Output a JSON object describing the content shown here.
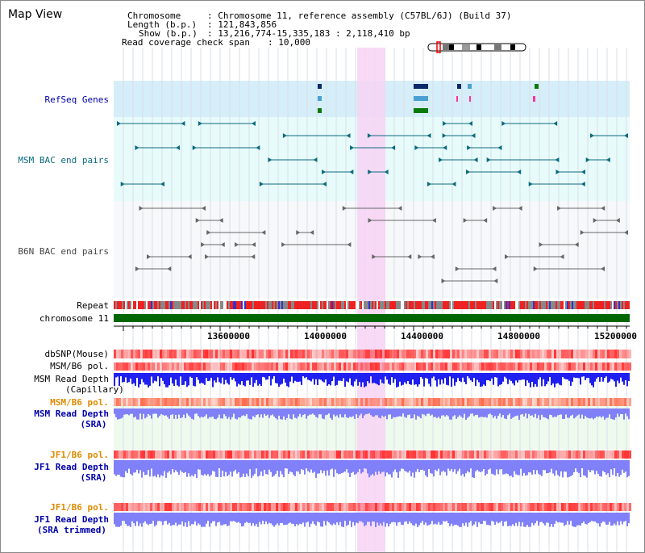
{
  "header": {
    "title": "Map View",
    "chromosome_key": "Chromosome",
    "chromosome_value": ": Chromosome 11, reference assembly (C57BL/6J) (Build 37)",
    "length_key": "Length (b.p.)",
    "length_value": ": 121,843,856",
    "show_key": "Show (b.p.)",
    "show_value": ": 13,216,774-15,335,183 : 2,118,410 bp",
    "coverage_key": "Read coverage check span",
    "coverage_value": ": 10,000"
  },
  "tracks": {
    "refseq": "RefSeq Genes",
    "msm_bac": "MSM BAC end pairs",
    "b6n_bac": "B6N BAC end pairs",
    "repeat": "Repeat",
    "chrom": "chromosome 11",
    "dbsnp": "dbSNP(Mouse)",
    "msm_pol": "MSM/B6 pol.",
    "msm_depth_cap_1": "MSM Read Depth",
    "msm_depth_cap_2": "(Capillary)",
    "msm_pol_2": "MSM/B6 pol.",
    "msm_depth_sra_1": "MSM Read Depth",
    "msm_depth_sra_2": "(SRA)",
    "jf1_pol_1": "JF1/B6 pol.",
    "jf1_depth_1": "JF1 Read Depth",
    "jf1_depth_sra": "(SRA)",
    "jf1_pol_2": "JF1/B6 pol.",
    "jf1_depth_2": "JF1 Read Depth",
    "jf1_depth_trim": "(SRA trimmed)"
  },
  "axis": {
    "ticks": [
      "13600000",
      "14000000",
      "14400000",
      "14800000",
      "15200000"
    ]
  },
  "colors": {
    "highlight": "#f7d3f4",
    "refseq_bg": "#d6eef9",
    "bac_bg": "#e8fbfb",
    "chrom_green": "#006600",
    "snp_red": "#ff3030",
    "depth_blue": "#2020f0",
    "sra_blue": "#8080f8"
  }
}
